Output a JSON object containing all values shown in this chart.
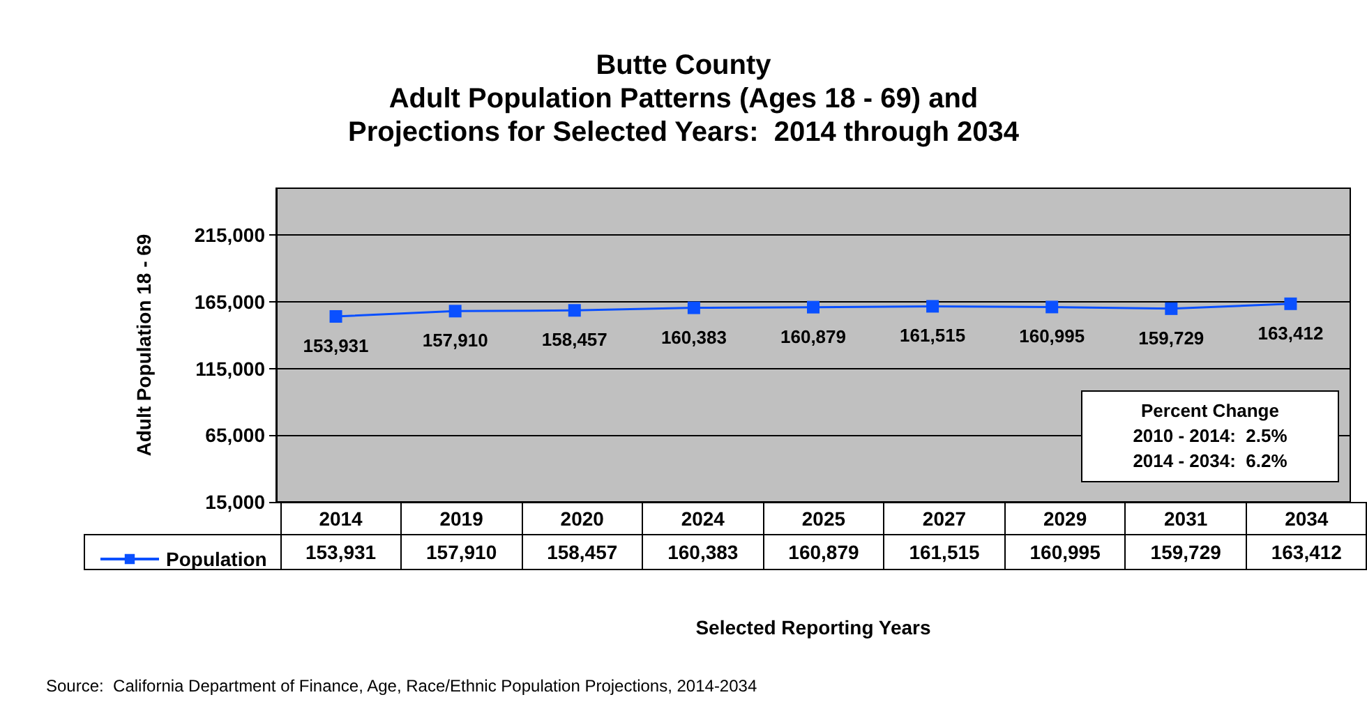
{
  "chart_data": {
    "type": "line",
    "title": "Butte County\nAdult Population Patterns (Ages 18 - 69) and\nProjections for Selected Years:  2014 through 2034",
    "xlabel": "Selected Reporting Years",
    "ylabel": "Adult Population 18 - 69",
    "categories": [
      "2014",
      "2019",
      "2020",
      "2024",
      "2025",
      "2027",
      "2029",
      "2031",
      "2034"
    ],
    "series": [
      {
        "name": "Population",
        "color": "#0a50ff",
        "values": [
          153931,
          157910,
          158457,
          160383,
          160879,
          161515,
          160995,
          159729,
          163412
        ],
        "value_labels": [
          "153,931",
          "157,910",
          "158,457",
          "160,383",
          "160,879",
          "161,515",
          "160,995",
          "159,729",
          "163,412"
        ]
      }
    ],
    "ylim": [
      15000,
      250000
    ],
    "yticks": [
      {
        "value": 15000,
        "label": "15,000"
      },
      {
        "value": 65000,
        "label": "65,000"
      },
      {
        "value": 115000,
        "label": "115,000"
      },
      {
        "value": 165000,
        "label": "165,000"
      },
      {
        "value": 215000,
        "label": "215,000"
      }
    ],
    "grid": "y",
    "legend": "bottom left",
    "marker": "square",
    "line_style": "solid",
    "annotations": [
      "Percent Change\n2010 - 2014:  2.5%\n2014 - 2034:  6.2%",
      "Source:  California Department of Finance, Age, Race/Ethnic Population Projections, 2014-2034"
    ]
  }
}
